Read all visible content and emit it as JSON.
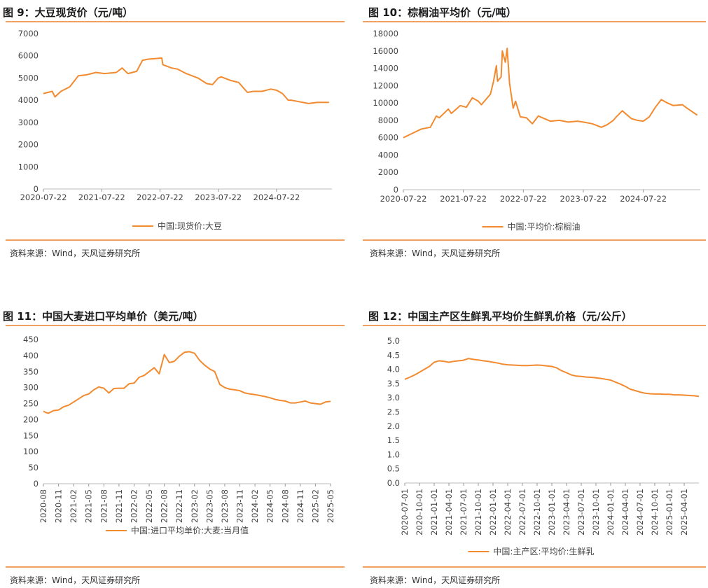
{
  "colors": {
    "series": "#f28a30",
    "title_rule": "#f0a060"
  },
  "chart_data": [
    {
      "type": "line",
      "title": "图 9：大豆现货价（元/吨）",
      "source": "资料来源：Wind，天风证券研究所",
      "legend": "中国:现货价:大豆",
      "xlabel": "",
      "ylabel": "",
      "ylim": [
        0,
        7000
      ],
      "yticks": [
        "0",
        "1000",
        "2000",
        "3000",
        "4000",
        "5000",
        "6000",
        "7000"
      ],
      "xticks": [
        "2020-07-22",
        "2021-07-22",
        "2022-07-22",
        "2023-07-22",
        "2024-07-22"
      ],
      "x_range": [
        2020.55,
        2025.5
      ],
      "x_tick_positions": [
        2020.55,
        2021.55,
        2022.55,
        2023.55,
        2024.55
      ],
      "series": [
        {
          "name": "中国:现货价:大豆",
          "x": [
            2020.55,
            2020.7,
            2020.75,
            2020.85,
            2021.0,
            2021.15,
            2021.3,
            2021.45,
            2021.6,
            2021.8,
            2021.9,
            2022.0,
            2022.15,
            2022.25,
            2022.35,
            2022.5,
            2022.58,
            2022.6,
            2022.75,
            2022.85,
            2023.0,
            2023.2,
            2023.35,
            2023.45,
            2023.55,
            2023.6,
            2023.75,
            2023.9,
            2024.05,
            2024.15,
            2024.3,
            2024.45,
            2024.55,
            2024.65,
            2024.75,
            2024.8,
            2024.9,
            2025.1,
            2025.25,
            2025.45
          ],
          "values": [
            4300,
            4400,
            4150,
            4400,
            4600,
            5100,
            5150,
            5250,
            5200,
            5250,
            5450,
            5200,
            5300,
            5800,
            5850,
            5880,
            5900,
            5600,
            5450,
            5400,
            5200,
            5000,
            4750,
            4700,
            5000,
            5050,
            4900,
            4800,
            4350,
            4400,
            4400,
            4500,
            4450,
            4300,
            4000,
            4000,
            3950,
            3850,
            3900,
            3900
          ]
        }
      ]
    },
    {
      "type": "line",
      "title": "图 10：棕榈油平均价（元/吨）",
      "source": "资料来源：Wind，天风证券研究所",
      "legend": "中国:平均价:棕榈油",
      "xlabel": "",
      "ylabel": "",
      "ylim": [
        0,
        18000
      ],
      "yticks": [
        "0",
        "2000",
        "4000",
        "6000",
        "8000",
        "10000",
        "12000",
        "14000",
        "16000",
        "18000"
      ],
      "xticks": [
        "2020-07-22",
        "2021-07-22",
        "2022-07-22",
        "2023-07-22",
        "2024-07-22"
      ],
      "x_range": [
        2020.55,
        2025.5
      ],
      "x_tick_positions": [
        2020.55,
        2021.55,
        2022.55,
        2023.55,
        2024.55
      ],
      "series": [
        {
          "name": "中国:平均价:棕榈油",
          "x": [
            2020.55,
            2020.7,
            2020.85,
            2021.0,
            2021.1,
            2021.15,
            2021.3,
            2021.35,
            2021.5,
            2021.6,
            2021.7,
            2021.8,
            2021.85,
            2021.95,
            2022.0,
            2022.05,
            2022.1,
            2022.12,
            2022.18,
            2022.2,
            2022.25,
            2022.28,
            2022.32,
            2022.38,
            2022.42,
            2022.5,
            2022.6,
            2022.7,
            2022.8,
            2022.9,
            2023.0,
            2023.15,
            2023.3,
            2023.45,
            2023.55,
            2023.7,
            2023.85,
            2023.95,
            2024.05,
            2024.1,
            2024.2,
            2024.35,
            2024.45,
            2024.55,
            2024.65,
            2024.75,
            2024.85,
            2024.95,
            2025.05,
            2025.2,
            2025.3,
            2025.45
          ],
          "values": [
            6000,
            6500,
            7000,
            7200,
            8500,
            8300,
            9300,
            8800,
            9700,
            9500,
            10600,
            10200,
            9800,
            10600,
            11000,
            12400,
            14300,
            12500,
            13000,
            16000,
            14700,
            16300,
            12300,
            9400,
            10200,
            8400,
            8300,
            7600,
            8500,
            8200,
            7900,
            8000,
            7800,
            7900,
            7800,
            7600,
            7200,
            7500,
            8000,
            8400,
            9100,
            8200,
            8000,
            7900,
            8400,
            9500,
            10400,
            10000,
            9700,
            9800,
            9300,
            8600
          ]
        }
      ]
    },
    {
      "type": "line",
      "title": "图 11：中国大麦进口平均单价（美元/吨）",
      "source": "资料来源：Wind，天风证券研究所",
      "legend": "中国:进口平均单价:大麦:当月值",
      "xlabel": "",
      "ylabel": "",
      "ylim": [
        0,
        450
      ],
      "yticks": [
        "0",
        "50",
        "100",
        "150",
        "200",
        "250",
        "300",
        "350",
        "400",
        "450"
      ],
      "xticks": [
        "2020-08",
        "2020-11",
        "2021-02",
        "2021-05",
        "2021-08",
        "2021-11",
        "2022-02",
        "2022-05",
        "2022-08",
        "2022-11",
        "2023-02",
        "2023-05",
        "2023-08",
        "2023-11",
        "2024-02",
        "2024-05",
        "2024-08",
        "2024-11",
        "2025-02",
        "2025-05"
      ],
      "x_range": [
        0,
        57
      ],
      "x_tick_positions": [
        0,
        3,
        6,
        9,
        12,
        15,
        18,
        21,
        24,
        27,
        30,
        33,
        36,
        39,
        42,
        45,
        48,
        51,
        54,
        57
      ],
      "series": [
        {
          "name": "中国:进口平均单价:大麦:当月值",
          "x": [
            0,
            0.5,
            1,
            2,
            3,
            4,
            5,
            6,
            7,
            8,
            9,
            10,
            11,
            12,
            13,
            14,
            15,
            16,
            17,
            18,
            19,
            20,
            21,
            22,
            23,
            24,
            25,
            26,
            27,
            28,
            29,
            30,
            31,
            32,
            33,
            34,
            35,
            36,
            37,
            38,
            39,
            40,
            41,
            42,
            43,
            44,
            45,
            46,
            47,
            48,
            49,
            50,
            51,
            52,
            53,
            54,
            55,
            56,
            57
          ],
          "values": [
            226,
            222,
            220,
            228,
            230,
            240,
            245,
            255,
            265,
            275,
            280,
            293,
            302,
            298,
            283,
            297,
            298,
            298,
            312,
            314,
            332,
            338,
            350,
            362,
            343,
            403,
            378,
            382,
            398,
            410,
            412,
            407,
            385,
            370,
            358,
            350,
            310,
            300,
            295,
            293,
            290,
            283,
            280,
            278,
            275,
            272,
            268,
            263,
            260,
            258,
            252,
            252,
            255,
            258,
            252,
            250,
            248,
            255,
            257
          ]
        }
      ]
    },
    {
      "type": "line",
      "title": "图 12：中国主产区生鲜乳平均价生鲜乳价格（元/公斤）",
      "source": "资料来源：Wind，天风证券研究所",
      "legend": "中国:主产区:平均价:生鲜乳",
      "xlabel": "",
      "ylabel": "",
      "ylim": [
        0,
        5.0
      ],
      "yticks": [
        "0.0",
        "0.5",
        "1.0",
        "1.5",
        "2.0",
        "2.5",
        "3.0",
        "3.5",
        "4.0",
        "4.5",
        "5.0"
      ],
      "xticks": [
        "2020-07-01",
        "2020-10-01",
        "2021-01-01",
        "2021-04-01",
        "2021-07-01",
        "2021-10-01",
        "2022-01-01",
        "2022-04-01",
        "2022-07-01",
        "2022-10-01",
        "2023-01-01",
        "2023-04-01",
        "2023-07-01",
        "2023-10-01",
        "2024-01-01",
        "2024-04-01",
        "2024-07-01",
        "2024-10-01",
        "2025-01-01",
        "2025-04-01"
      ],
      "x_range": [
        0,
        60
      ],
      "x_tick_positions": [
        0,
        3,
        6,
        9,
        12,
        15,
        18,
        21,
        24,
        27,
        30,
        33,
        36,
        39,
        42,
        45,
        48,
        51,
        54,
        57
      ],
      "series": [
        {
          "name": "中国:主产区:平均价:生鲜乳",
          "x": [
            0,
            1,
            2,
            3,
            4,
            5,
            6,
            7,
            8,
            9,
            10,
            11,
            12,
            13,
            14,
            15,
            16,
            17,
            18,
            19,
            20,
            21,
            22,
            23,
            24,
            25,
            26,
            27,
            28,
            29,
            30,
            31,
            32,
            33,
            34,
            35,
            36,
            37,
            38,
            39,
            40,
            41,
            42,
            43,
            44,
            45,
            46,
            47,
            48,
            49,
            50,
            51,
            52,
            53,
            54,
            55,
            56,
            57,
            58,
            59,
            60
          ],
          "values": [
            3.65,
            3.72,
            3.8,
            3.9,
            4.0,
            4.1,
            4.25,
            4.3,
            4.28,
            4.25,
            4.28,
            4.3,
            4.32,
            4.38,
            4.35,
            4.33,
            4.3,
            4.28,
            4.25,
            4.22,
            4.18,
            4.16,
            4.15,
            4.14,
            4.13,
            4.13,
            4.14,
            4.15,
            4.14,
            4.12,
            4.1,
            4.05,
            3.95,
            3.88,
            3.8,
            3.76,
            3.75,
            3.73,
            3.72,
            3.7,
            3.68,
            3.65,
            3.62,
            3.55,
            3.48,
            3.4,
            3.3,
            3.25,
            3.2,
            3.16,
            3.14,
            3.13,
            3.13,
            3.12,
            3.12,
            3.1,
            3.1,
            3.09,
            3.08,
            3.07,
            3.05
          ]
        }
      ]
    }
  ]
}
